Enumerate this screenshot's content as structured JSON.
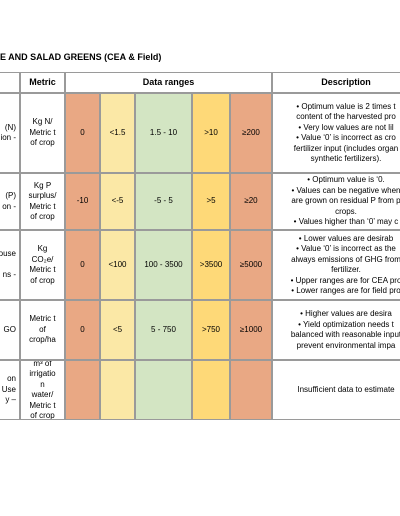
{
  "header": {
    "title": "E AND SALAD GREENS (CEA & Field)"
  },
  "table": {
    "columns": [
      "Metric",
      "Data ranges",
      "Description"
    ],
    "rows": [
      {
        "first": [
          "(N)",
          "ion -"
        ],
        "metric": [
          "Kg N/",
          "Metric t",
          "of crop"
        ],
        "ranges": [
          "0",
          "<1.5",
          "1.5 - 10",
          ">10",
          "≥200"
        ],
        "description": [
          "• Optimum value is 2 times t",
          "content of the harvested pro",
          "• Very low values are not lil",
          "• Value ‘0’ is incorrect as cro",
          "fertilizer input (includes organ",
          "synthetic fertilizers)."
        ]
      },
      {
        "first": [
          "(P)",
          "on -"
        ],
        "metric": [
          "Kg P",
          "surplus/",
          "Metric t",
          "of crop"
        ],
        "ranges": [
          "-10",
          "<-5",
          "-5 - 5",
          ">5",
          "≥20"
        ],
        "description": [
          "• Optimum value is ‘0.",
          "• Values can be negative when",
          "are grown on residual P from p",
          "crops.",
          "• Values higher than ‘0’ may c"
        ]
      },
      {
        "first": [
          "ouse",
          "",
          "ns -"
        ],
        "metric": [
          "Kg",
          "CO₂e/",
          "Metric t",
          "of crop"
        ],
        "ranges": [
          "0",
          "<100",
          "100 - 3500",
          ">3500",
          "≥5000"
        ],
        "description": [
          "• Lower values are desirab",
          "• Value ‘0’ is incorrect as the",
          "always emissions of GHG from",
          "fertilizer.",
          "• Upper ranges are for CEA pro",
          "• Lower ranges are for field pro"
        ]
      },
      {
        "first": [
          "GO"
        ],
        "metric": [
          "Metric t",
          "of",
          "crop/ha"
        ],
        "ranges": [
          "0",
          "<5",
          "5 - 750",
          ">750",
          "≥1000"
        ],
        "description": [
          "• Higher values are desira",
          "• Yield optimization needs t",
          "balanced with reasonable input",
          "prevent environmental impa"
        ]
      },
      {
        "first": [
          "on",
          "Use",
          "y –"
        ],
        "metric": [
          "m³ of",
          "irrigatio",
          "n",
          "water/",
          "Metric t",
          "of crop"
        ],
        "ranges": [
          "",
          "",
          "",
          "",
          ""
        ],
        "description": [
          "Insufficient data to estimate"
        ]
      }
    ]
  }
}
